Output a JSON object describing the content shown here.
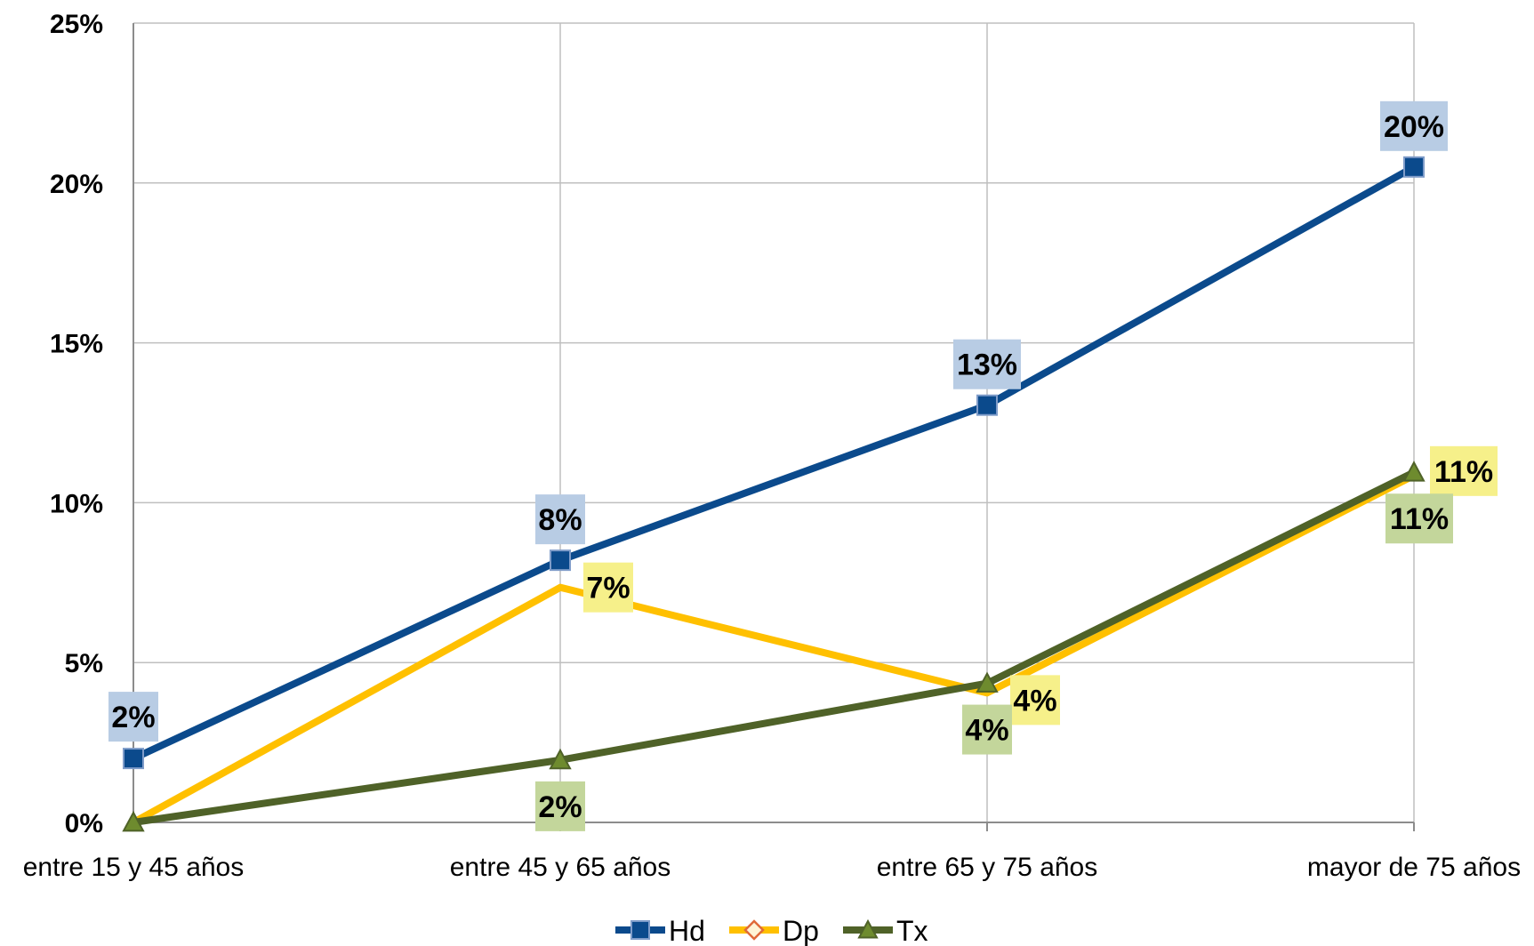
{
  "chart_data": {
    "type": "line",
    "categories": [
      "entre 15 y 45 años",
      "entre 45 y 65 años",
      "entre 65 y 75 años",
      "mayor de 75 años"
    ],
    "ylim": [
      0,
      25
    ],
    "yticks": [
      0,
      5,
      10,
      15,
      20,
      25
    ],
    "ytick_labels": [
      "0%",
      "5%",
      "10%",
      "15%",
      "20%",
      "25%"
    ],
    "grid": true,
    "legend_position": "bottom",
    "series": [
      {
        "name": "Hd",
        "values": [
          2,
          8.2,
          13.05,
          20.5
        ],
        "labels": [
          "2%",
          "8%",
          "13%",
          "20%"
        ],
        "color": "#0B4A8C",
        "marker": "square",
        "label_bg": "#B8CCE4"
      },
      {
        "name": "Dp",
        "values": [
          0,
          7.35,
          4.05,
          10.85
        ],
        "labels": [
          "",
          "7%",
          "4%",
          "11%"
        ],
        "color": "#FFC000",
        "marker": "diamond",
        "label_bg": "#F6F08A"
      },
      {
        "name": "Tx",
        "values": [
          0,
          1.95,
          4.35,
          10.95
        ],
        "labels": [
          "",
          "2%",
          "4%",
          "11%"
        ],
        "color": "#4F6228",
        "marker": "triangle",
        "label_bg": "#C3D69B"
      }
    ]
  }
}
